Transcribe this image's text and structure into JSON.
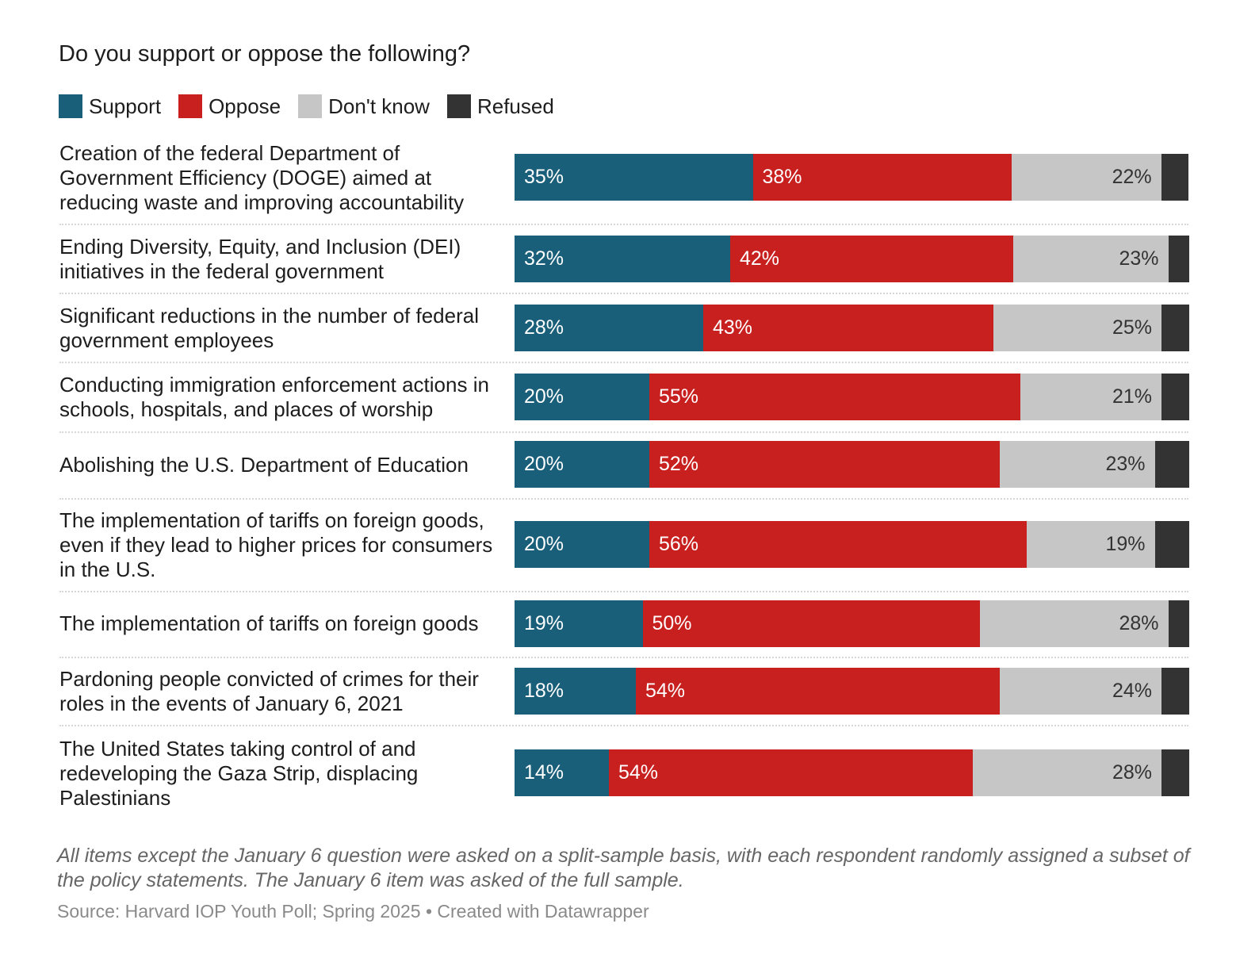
{
  "chart_data": {
    "type": "bar",
    "orientation": "horizontal",
    "stacked": true,
    "title": "Do you support or oppose the following?",
    "legend_position": "top-left",
    "grid": false,
    "xlim": [
      0,
      100
    ],
    "series": [
      {
        "name": "Support",
        "color": "#1a5f7a",
        "values": [
          35,
          32,
          28,
          20,
          20,
          20,
          19,
          18,
          14
        ]
      },
      {
        "name": "Oppose",
        "color": "#c81f1f",
        "values": [
          38,
          42,
          43,
          55,
          52,
          56,
          50,
          54,
          54
        ]
      },
      {
        "name": "Don't know",
        "color": "#c6c6c6",
        "values": [
          22,
          23,
          25,
          21,
          23,
          19,
          28,
          24,
          28
        ]
      },
      {
        "name": "Refused",
        "color": "#333333",
        "values": [
          4,
          3,
          4,
          4,
          5,
          5,
          3,
          4,
          4
        ]
      }
    ],
    "categories": [
      "Creation of the federal Department of Government Efficiency (DOGE) aimed at reducing waste and improving accountability",
      "Ending Diversity, Equity, and Inclusion (DEI) initiatives in the federal government",
      "Significant reductions in the number of federal government employees",
      "Conducting immigration enforcement actions in schools, hospitals, and places of worship",
      "Abolishing the U.S. Department of Education",
      "The implementation of tariffs on foreign goods, even if they lead to higher prices for consumers in the U.S.",
      "The implementation of tariffs on foreign goods",
      "Pardoning people convicted of crimes for their roles in the events of January 6, 2021",
      "The United States taking control of and redeveloping the Gaza Strip, displacing Palestinians"
    ],
    "note": "All items except the January 6 question were asked on a split-sample basis, with each respondent randomly assigned a subset of the policy statements. The January 6 item was asked of the full sample.",
    "source": "Source: Harvard IOP Youth Poll; Spring 2025 • Created with Datawrapper"
  }
}
